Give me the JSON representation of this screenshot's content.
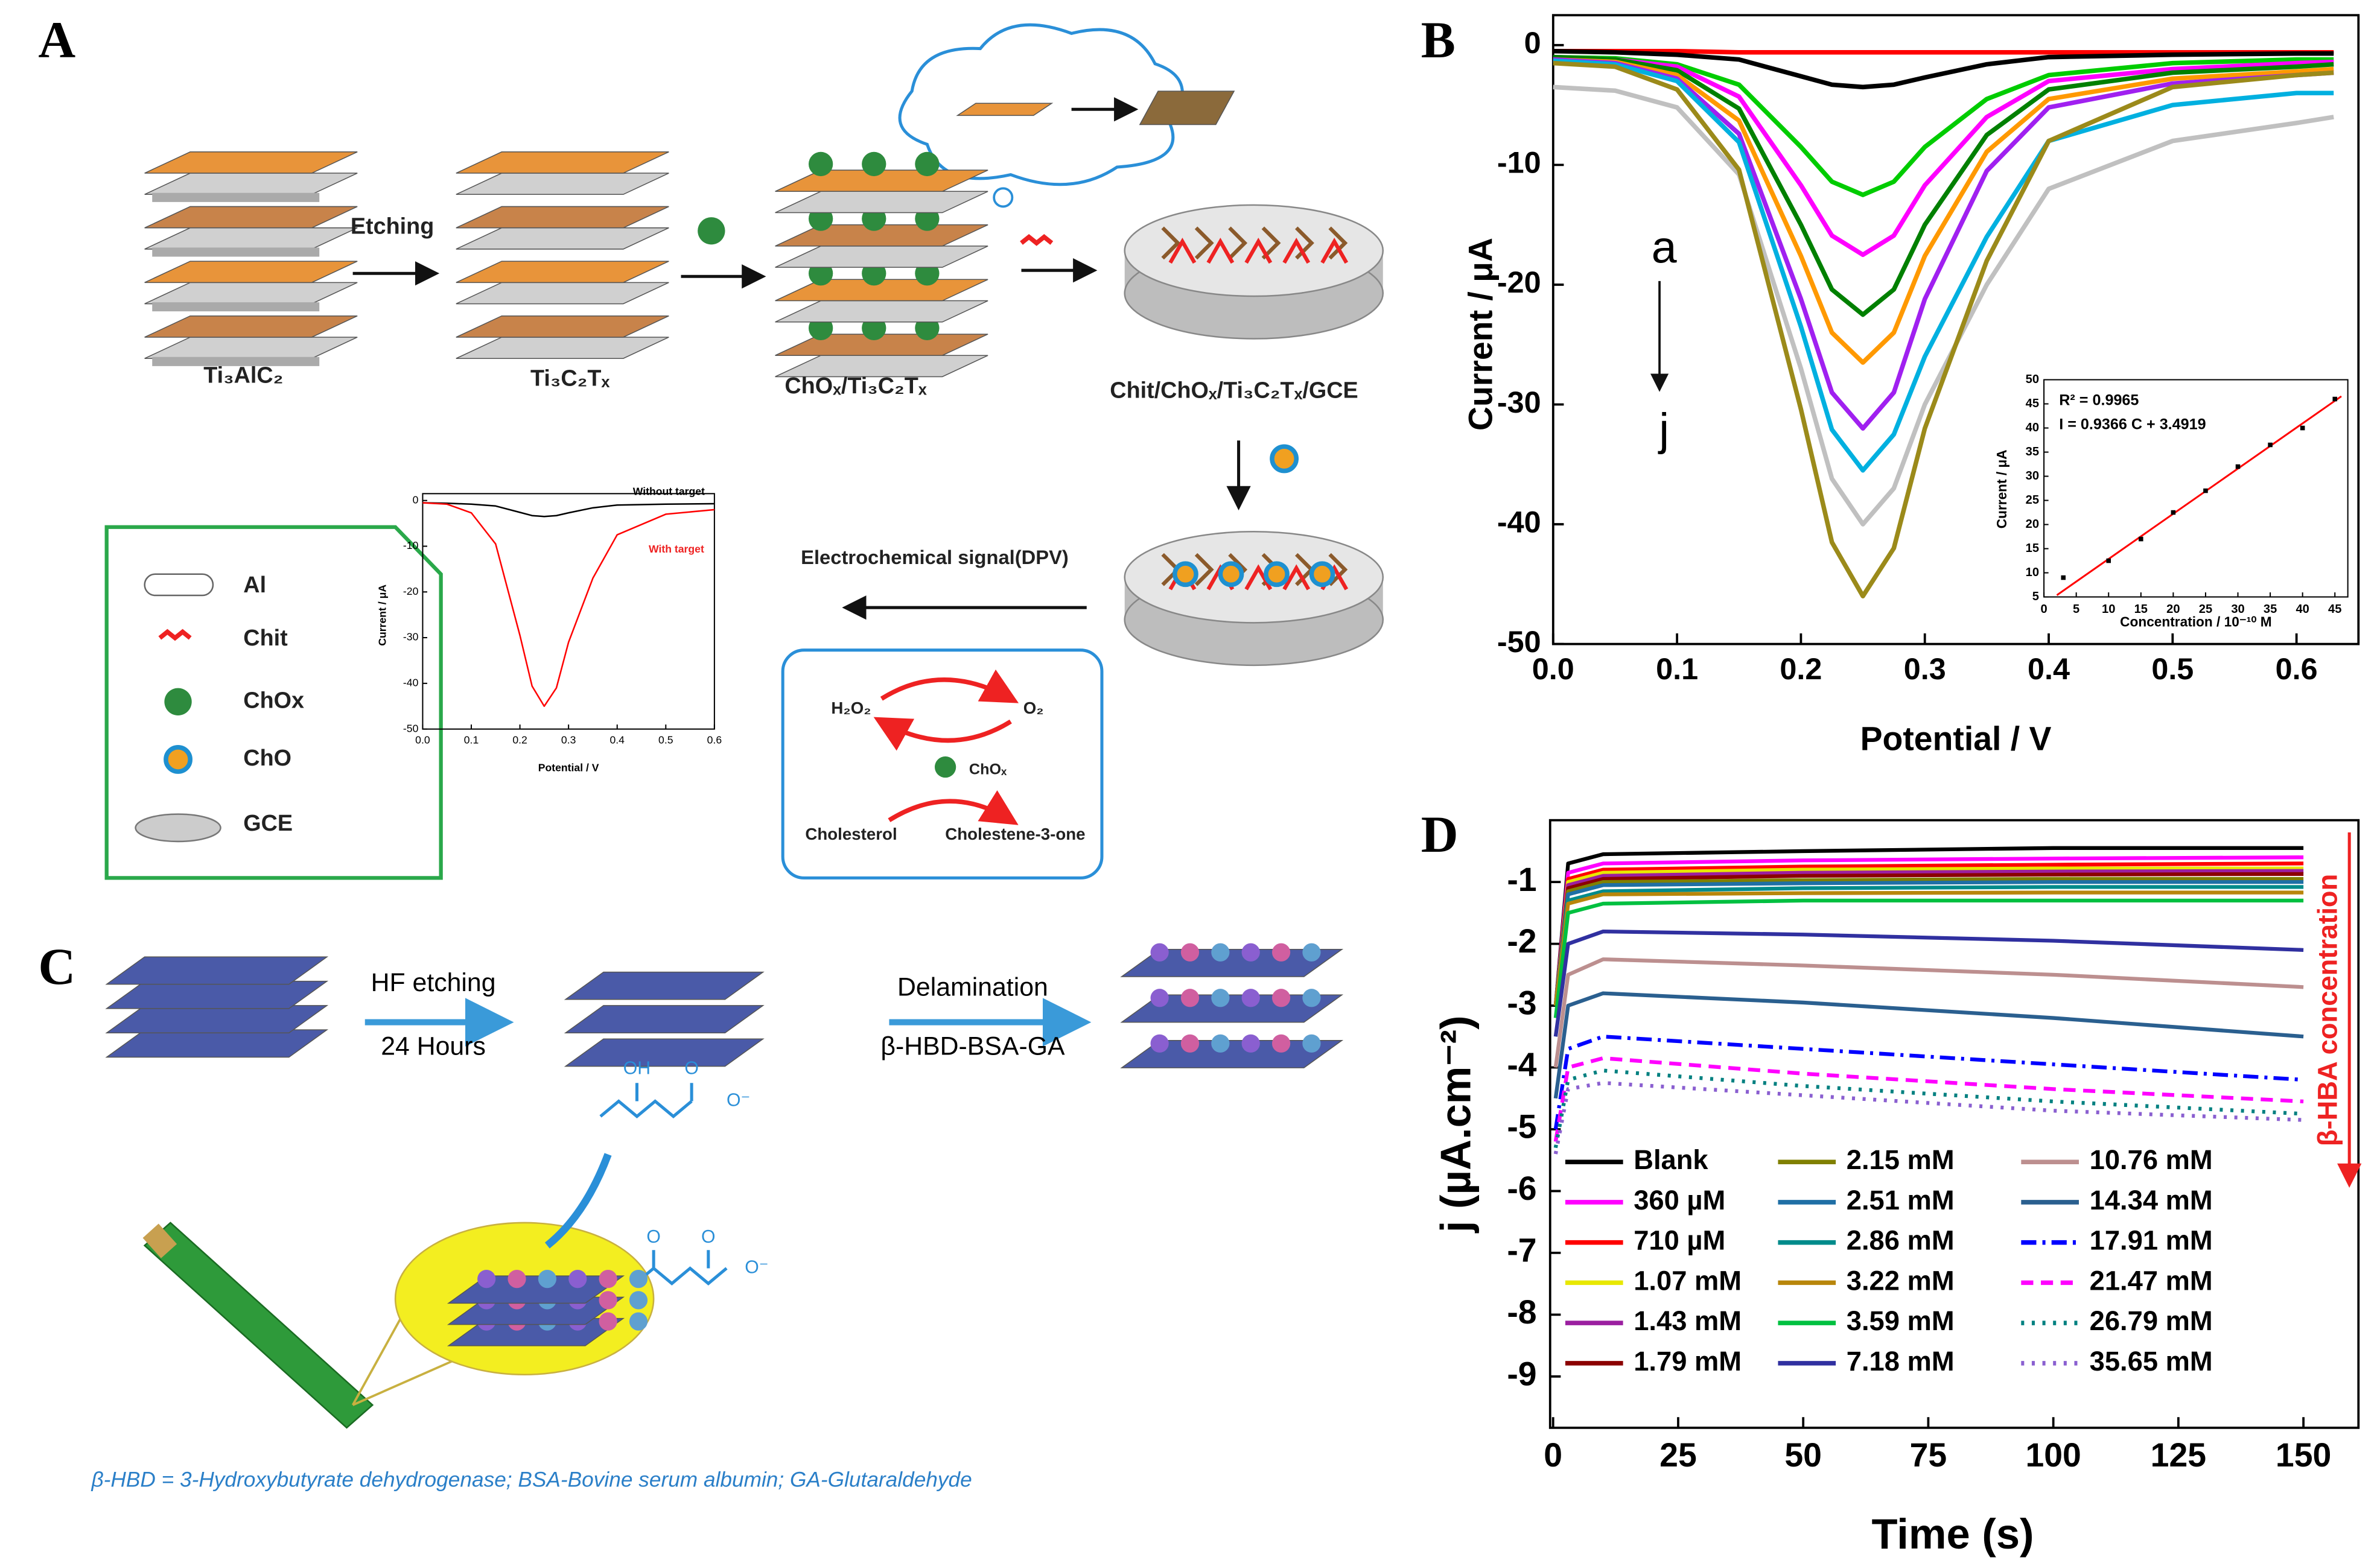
{
  "panel_a": {
    "label": "A",
    "steps": [
      "Ti₃AlC₂",
      "Ti₃C₂Tₓ",
      "ChOₓ/Ti₃C₂Tₓ",
      "Chit/ChOₓ/Ti₃C₂Tₓ/GCE"
    ],
    "etching": "Etching",
    "signal": "Electrochemical signal(DPV)",
    "legend": [
      "Al",
      "Chit",
      "ChOx",
      "ChO",
      "GCE"
    ],
    "cycle": {
      "h2o2": "H₂O₂",
      "o2": "O₂",
      "enzyme": "ChOₓ",
      "substrate": "Cholesterol",
      "product": "Cholestene-3-one"
    }
  },
  "panel_b": {
    "label": "B"
  },
  "panel_c": {
    "label": "C",
    "step1": [
      "HF etching",
      "24 Hours"
    ],
    "step2": [
      "Delamination",
      "β-HBD-BSA-GA"
    ],
    "molecule1": [
      "OH",
      "O",
      "O⁻"
    ],
    "molecule2": [
      "O",
      "O",
      "O⁻"
    ],
    "caption": "β-HBD = 3-Hydroxybutyrate dehydrogenase; BSA-Bovine serum albumin; GA-Glutaraldehyde"
  },
  "panel_d": {
    "label": "D"
  },
  "chart_data": [
    {
      "type": "line",
      "x": [
        0.0,
        0.05,
        0.1,
        0.15,
        0.2,
        0.225,
        0.25,
        0.275,
        0.3,
        0.35,
        0.4,
        0.5,
        0.6,
        0.63
      ],
      "series": [
        {
          "color": "#ff0000",
          "values": [
            -0.5,
            -0.5,
            -0.5,
            -0.6,
            -0.6,
            -0.6,
            -0.6,
            -0.6,
            -0.6,
            -0.6,
            -0.6,
            -0.6,
            -0.6,
            -0.6
          ]
        },
        {
          "color": "#000000",
          "values": [
            -0.5,
            -0.6,
            -0.8,
            -1.2,
            -2.6,
            -3.3,
            -3.5,
            -3.3,
            -2.7,
            -1.6,
            -1.0,
            -0.8,
            -0.7,
            -0.7
          ]
        },
        {
          "color": "#00cc00",
          "values": [
            -1,
            -1.1,
            -1.6,
            -3.3,
            -8.5,
            -11.4,
            -12.5,
            -11.4,
            -8.5,
            -4.5,
            -2.5,
            -1.5,
            -1.2,
            -1.2
          ]
        },
        {
          "color": "#ff00ff",
          "values": [
            -1,
            -1.2,
            -1.8,
            -4.3,
            -11.7,
            -15.9,
            -17.5,
            -15.9,
            -11.7,
            -6,
            -3,
            -2,
            -1.5,
            -1.4
          ]
        },
        {
          "color": "#008000",
          "values": [
            -1,
            -1.2,
            -2.1,
            -5.3,
            -15,
            -20.4,
            -22.5,
            -20.4,
            -15,
            -7.5,
            -3.7,
            -2.3,
            -1.8,
            -1.6
          ]
        },
        {
          "color": "#ff9900",
          "values": [
            -1.2,
            -1.4,
            -2.5,
            -6.3,
            -17.6,
            -24,
            -26.5,
            -24,
            -17.6,
            -8.9,
            -4.5,
            -2.8,
            -2.2,
            -2
          ]
        },
        {
          "color": "#a020f0",
          "values": [
            -1.2,
            -1.5,
            -2.8,
            -7.4,
            -21.2,
            -29,
            -32,
            -29,
            -21.2,
            -10.5,
            -5.2,
            -3.2,
            -2.5,
            -2.3
          ]
        },
        {
          "color": "#00b0e0",
          "values": [
            -1.3,
            -1.6,
            -3.0,
            -8.1,
            -23.5,
            -32.1,
            -35.5,
            -32.5,
            -26,
            -16,
            -8,
            -5,
            -4,
            -4
          ]
        },
        {
          "color": "#c0c0c0",
          "values": [
            -3.5,
            -3.8,
            -5.2,
            -10.8,
            -27,
            -36.2,
            -40,
            -37,
            -30,
            -20,
            -12,
            -8,
            -6.5,
            -6
          ]
        },
        {
          "color": "#9b8a1a",
          "values": [
            -1.5,
            -1.8,
            -3.7,
            -10.4,
            -30.4,
            -41.5,
            -46,
            -42,
            -32,
            -18,
            -8,
            -3.5,
            -2.5,
            -2.3
          ]
        }
      ],
      "xlim": [
        0,
        0.65
      ],
      "ylim": [
        -50,
        2.5
      ],
      "xticks": [
        {
          "value": 0,
          "label": "0.0"
        },
        0.1,
        0.2,
        0.3,
        0.4,
        0.5,
        0.6
      ],
      "yticks": [
        0,
        -10,
        -20,
        -30,
        -40,
        -50
      ],
      "xlabel": "Potential / V",
      "ylabel": "Current / μA",
      "annotations": [
        "a",
        "j"
      ]
    },
    {
      "type": "scatter",
      "x": [
        3,
        10,
        15,
        20,
        25,
        30,
        35,
        40,
        45
      ],
      "values": [
        9,
        12.5,
        17,
        22.5,
        27,
        32,
        36.5,
        40,
        46
      ],
      "color": "#000000",
      "fit": {
        "x": [
          2,
          46
        ],
        "values": [
          5.37,
          46.57
        ],
        "color": "#ff0000"
      },
      "xlim": [
        0,
        47
      ],
      "ylim": [
        5,
        50
      ],
      "xticks": [
        0,
        5,
        10,
        15,
        20,
        25,
        30,
        35,
        40,
        45
      ],
      "yticks": [
        5,
        10,
        15,
        20,
        25,
        30,
        35,
        40,
        45,
        50
      ],
      "xlabel": "Concentration / 10⁻¹⁰ M",
      "ylabel": "Current / μA",
      "stats": [
        "R² = 0.9965",
        "I = 0.9366 C + 3.4919"
      ]
    },
    {
      "type": "line",
      "x": [
        0.5,
        3,
        10,
        50,
        100,
        150
      ],
      "series": [
        {
          "name": "Blank",
          "color": "#000000",
          "dash": "solid",
          "values": [
            -3,
            -0.7,
            -0.55,
            -0.5,
            -0.45,
            -0.45
          ]
        },
        {
          "name": "360 µM",
          "color": "#ff00ff",
          "dash": "solid",
          "values": [
            -3,
            -0.85,
            -0.7,
            -0.65,
            -0.62,
            -0.6
          ]
        },
        {
          "name": "710 µM",
          "color": "#ff0000",
          "dash": "solid",
          "values": [
            -3,
            -0.95,
            -0.8,
            -0.75,
            -0.72,
            -0.7
          ]
        },
        {
          "name": "1.07 mM",
          "color": "#e8e800",
          "dash": "solid",
          "values": [
            -3,
            -1,
            -0.85,
            -0.8,
            -0.78,
            -0.78
          ]
        },
        {
          "name": "1.43 mM",
          "color": "#9b1fa0",
          "dash": "solid",
          "values": [
            -3,
            -1.05,
            -0.9,
            -0.85,
            -0.83,
            -0.82
          ]
        },
        {
          "name": "1.79 mM",
          "color": "#8b0000",
          "dash": "solid",
          "values": [
            -3,
            -1.1,
            -0.95,
            -0.9,
            -0.88,
            -0.87
          ]
        },
        {
          "name": "2.15 mM",
          "color": "#808000",
          "dash": "solid",
          "values": [
            -3,
            -1.15,
            -1.0,
            -0.97,
            -0.95,
            -0.95
          ]
        },
        {
          "name": "2.51 mM",
          "color": "#1f6fa5",
          "dash": "solid",
          "values": [
            -3,
            -1.2,
            -1.05,
            -1.02,
            -1,
            -1
          ]
        },
        {
          "name": "2.86 mM",
          "color": "#008b8b",
          "dash": "solid",
          "values": [
            -3,
            -1.3,
            -1.15,
            -1.1,
            -1.08,
            -1.08
          ]
        },
        {
          "name": "3.22 mM",
          "color": "#b8860b",
          "dash": "solid",
          "values": [
            -3,
            -1.35,
            -1.2,
            -1.18,
            -1.17,
            -1.17
          ]
        },
        {
          "name": "3.59 mM",
          "color": "#00c040",
          "dash": "solid",
          "values": [
            -3.2,
            -1.5,
            -1.35,
            -1.3,
            -1.3,
            -1.3
          ]
        },
        {
          "name": "7.18 mM",
          "color": "#3030a0",
          "dash": "solid",
          "values": [
            -3.5,
            -2.0,
            -1.8,
            -1.85,
            -1.95,
            -2.1
          ]
        },
        {
          "name": "10.76 mM",
          "color": "#bc8f8f",
          "dash": "solid",
          "values": [
            -4,
            -2.5,
            -2.25,
            -2.35,
            -2.5,
            -2.7
          ]
        },
        {
          "name": "14.34 mM",
          "color": "#2a5f8f",
          "dash": "solid",
          "values": [
            -4.5,
            -3.0,
            -2.8,
            -2.95,
            -3.2,
            -3.5
          ]
        },
        {
          "name": "17.91 mM",
          "color": "#0000ff",
          "dash": "dashdot",
          "values": [
            -5,
            -3.7,
            -3.5,
            -3.7,
            -3.95,
            -4.2
          ]
        },
        {
          "name": "21.47 mM",
          "color": "#ff00ff",
          "dash": "dash",
          "values": [
            -5.2,
            -4.0,
            -3.85,
            -4.1,
            -4.35,
            -4.55
          ]
        },
        {
          "name": "26.79 mM",
          "color": "#008080",
          "dash": "dot",
          "values": [
            -5.3,
            -4.2,
            -4.05,
            -4.3,
            -4.55,
            -4.75
          ]
        },
        {
          "name": "35.65 mM",
          "color": "#8a5fd0",
          "dash": "dot",
          "values": [
            -5.4,
            -4.35,
            -4.25,
            -4.45,
            -4.7,
            -4.85
          ]
        }
      ],
      "xlim": [
        -0.6,
        161
      ],
      "ylim": [
        -9.83,
        0
      ],
      "xticks": [
        0,
        25,
        50,
        75,
        100,
        125,
        150
      ],
      "yticks": [
        -1,
        -2,
        -3,
        -4,
        -5,
        -6,
        -7,
        -8,
        -9
      ],
      "xlabel": "Time (s)",
      "ylabel": "j (µA.cm⁻²)",
      "annotation": "β-HBA concentration"
    },
    {
      "type": "line",
      "x": [
        0.0,
        0.05,
        0.1,
        0.15,
        0.2,
        0.225,
        0.25,
        0.275,
        0.3,
        0.35,
        0.4,
        0.5,
        0.6
      ],
      "series": [
        {
          "name": "Without target",
          "color": "#000000",
          "values": [
            -0.5,
            -0.6,
            -0.8,
            -1.2,
            -2.6,
            -3.3,
            -3.5,
            -3.3,
            -2.7,
            -1.6,
            -1.0,
            -0.8,
            -0.7
          ]
        },
        {
          "name": "With target",
          "color": "#ff0000",
          "values": [
            -0.5,
            -0.8,
            -2.7,
            -9.5,
            -29.5,
            -40.6,
            -45,
            -41,
            -31,
            -17,
            -7.5,
            -3,
            -2
          ]
        }
      ],
      "xlim": [
        0,
        0.6
      ],
      "ylim": [
        -50,
        1.5
      ],
      "xticks": [
        {
          "value": 0,
          "label": "0.0"
        },
        0.1,
        0.2,
        0.3,
        0.4,
        0.5,
        0.6
      ],
      "yticks": [
        0,
        -10,
        -20,
        -30,
        -40,
        -50
      ],
      "xlabel": "Potential / V",
      "ylabel": "Current / μA"
    }
  ]
}
